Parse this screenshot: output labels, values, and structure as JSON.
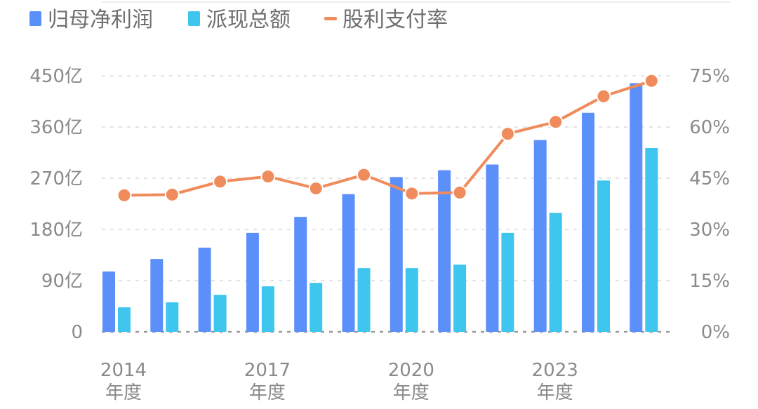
{
  "chart_data": {
    "type": "bar",
    "categories": [
      "2014",
      "2015",
      "2016",
      "2017",
      "2018",
      "2019",
      "2020",
      "2021",
      "2022",
      "2023",
      "2024",
      "2025"
    ],
    "x_tick_labels": [
      {
        "category": "2014",
        "year": "2014",
        "suffix": "年度"
      },
      {
        "category": "2017",
        "year": "2017",
        "suffix": "年度"
      },
      {
        "category": "2020",
        "year": "2020",
        "suffix": "年度"
      },
      {
        "category": "2023",
        "year": "2023",
        "suffix": "年度"
      }
    ],
    "series": [
      {
        "name": "归母净利润",
        "kind": "bar",
        "axis": "left",
        "color": "#5B8FF9",
        "values": [
          106,
          128,
          148,
          174,
          202,
          242,
          272,
          284,
          294,
          337,
          385,
          437
        ]
      },
      {
        "name": "派现总额",
        "kind": "bar",
        "axis": "left",
        "color": "#3FC6EE",
        "values": [
          43,
          52,
          65,
          80,
          86,
          112,
          112,
          118,
          174,
          209,
          266,
          323
        ]
      },
      {
        "name": "股利支付率",
        "kind": "line",
        "axis": "right",
        "color": "#F08B5C",
        "values": [
          40.0,
          40.2,
          44.0,
          45.5,
          42.0,
          46.0,
          40.5,
          40.8,
          58.0,
          61.5,
          69.0,
          73.5
        ]
      }
    ],
    "y_left": {
      "ylim": [
        0,
        450
      ],
      "ticks": [
        0,
        90,
        180,
        270,
        360,
        450
      ],
      "tick_labels": [
        "0",
        "90亿",
        "180亿",
        "270亿",
        "360亿",
        "450亿"
      ]
    },
    "y_right": {
      "ylim": [
        0,
        75
      ],
      "ticks": [
        0,
        15,
        30,
        45,
        60,
        75
      ],
      "tick_labels": [
        "0%",
        "15%",
        "30%",
        "45%",
        "60%",
        "75%"
      ]
    },
    "grid": true,
    "legend_position": "top-left"
  }
}
